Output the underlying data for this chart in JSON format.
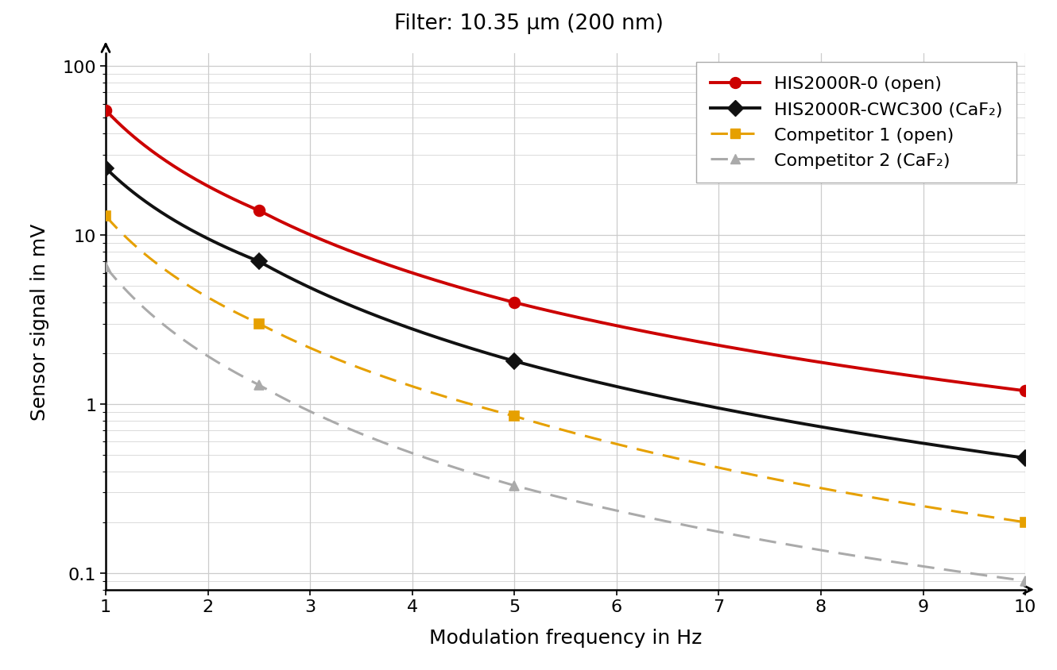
{
  "title": "Filter: 10.35 μm (200 nm)",
  "xlabel": "Modulation frequency in Hz",
  "ylabel": "Sensor signal in mV",
  "xlim": [
    1,
    10
  ],
  "ylim": [
    0.08,
    120
  ],
  "background_color": "#ffffff",
  "grid_color": "#cccccc",
  "series": [
    {
      "label": "HIS2000R-0 (open)",
      "x": [
        1,
        2.5,
        5,
        10
      ],
      "y": [
        55,
        14,
        4.0,
        1.2
      ],
      "color": "#cc0000",
      "linestyle": "-",
      "linewidth": 2.8,
      "marker": "o",
      "markersize": 10,
      "dashes": null
    },
    {
      "label": "HIS2000R-CWC300 (CaF₂)",
      "x": [
        1,
        2.5,
        5,
        10
      ],
      "y": [
        25,
        7.0,
        1.8,
        0.48
      ],
      "color": "#111111",
      "linestyle": "-",
      "linewidth": 2.8,
      "marker": "D",
      "markersize": 10,
      "dashes": null
    },
    {
      "label": "Competitor 1 (open)",
      "x": [
        1,
        2.5,
        5,
        10
      ],
      "y": [
        13,
        3.0,
        0.85,
        0.2
      ],
      "color": "#e6a000",
      "linestyle": "--",
      "linewidth": 2.2,
      "marker": "s",
      "markersize": 9,
      "dashes": [
        7,
        4
      ]
    },
    {
      "label": "Competitor 2 (CaF₂)",
      "x": [
        1,
        2.5,
        5,
        10
      ],
      "y": [
        6.5,
        1.3,
        0.33,
        0.09
      ],
      "color": "#aaaaaa",
      "linestyle": "--",
      "linewidth": 2.2,
      "marker": "^",
      "markersize": 9,
      "dashes": [
        7,
        4
      ]
    }
  ],
  "xticks": [
    1,
    2,
    3,
    4,
    5,
    6,
    7,
    8,
    9,
    10
  ],
  "title_fontsize": 19,
  "axis_label_fontsize": 18,
  "tick_fontsize": 16,
  "legend_fontsize": 16
}
